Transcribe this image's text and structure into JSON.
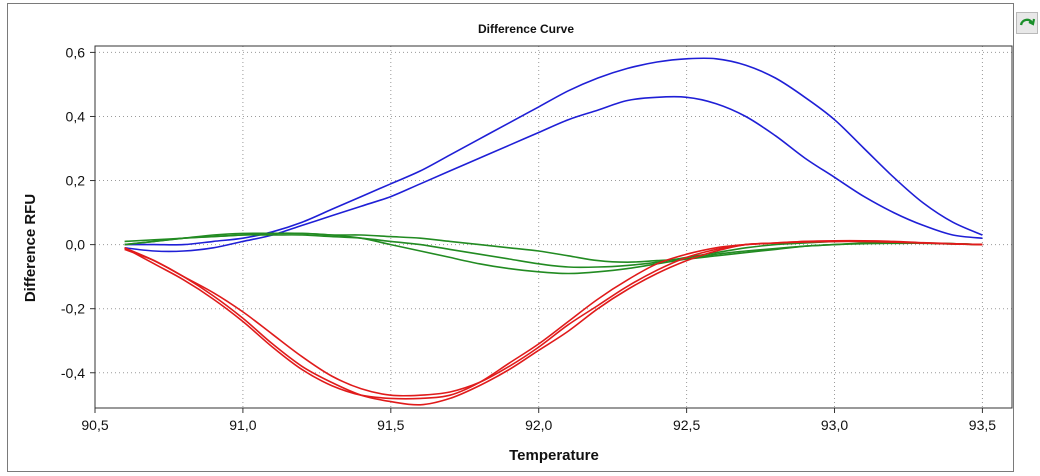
{
  "corner_icon": "refresh-arrow-icon",
  "chart_data": {
    "type": "line",
    "title": "Difference Curve",
    "xlabel": "Temperature",
    "ylabel": "Difference RFU",
    "xlim": [
      90.5,
      93.6
    ],
    "ylim": [
      -0.51,
      0.62
    ],
    "xticks": [
      90.5,
      91.0,
      91.5,
      92.0,
      92.5,
      93.0,
      93.5
    ],
    "xtick_labels": [
      "90,5",
      "91,0",
      "91,5",
      "92,0",
      "92,5",
      "93,0",
      "93,5"
    ],
    "yticks": [
      -0.4,
      -0.2,
      0.0,
      0.2,
      0.4,
      0.6
    ],
    "ytick_labels": [
      "-0,4",
      "-0,2",
      "0,0",
      "0,2",
      "0,4",
      "0,6"
    ],
    "grid": true,
    "legend": "none",
    "series": [
      {
        "color": "#1f1fd6",
        "x": [
          90.6,
          90.7,
          90.8,
          90.9,
          91.0,
          91.1,
          91.2,
          91.3,
          91.4,
          91.5,
          91.6,
          91.7,
          91.8,
          91.9,
          92.0,
          92.1,
          92.2,
          92.3,
          92.4,
          92.5,
          92.6,
          92.7,
          92.8,
          92.9,
          93.0,
          93.1,
          93.2,
          93.3,
          93.4,
          93.5
        ],
        "y": [
          0.0,
          0.0,
          0.0,
          0.01,
          0.02,
          0.04,
          0.07,
          0.11,
          0.15,
          0.19,
          0.23,
          0.28,
          0.33,
          0.38,
          0.43,
          0.48,
          0.52,
          0.55,
          0.57,
          0.58,
          0.58,
          0.56,
          0.52,
          0.46,
          0.39,
          0.3,
          0.21,
          0.13,
          0.07,
          0.03
        ]
      },
      {
        "color": "#1f1fd6",
        "x": [
          90.6,
          90.7,
          90.8,
          90.9,
          91.0,
          91.1,
          91.2,
          91.3,
          91.4,
          91.5,
          91.6,
          91.7,
          91.8,
          91.9,
          92.0,
          92.1,
          92.2,
          92.3,
          92.4,
          92.5,
          92.6,
          92.7,
          92.8,
          92.9,
          93.0,
          93.1,
          93.2,
          93.3,
          93.4,
          93.5
        ],
        "y": [
          -0.01,
          -0.02,
          -0.02,
          -0.01,
          0.01,
          0.03,
          0.06,
          0.09,
          0.12,
          0.15,
          0.19,
          0.23,
          0.27,
          0.31,
          0.35,
          0.39,
          0.42,
          0.45,
          0.46,
          0.46,
          0.44,
          0.4,
          0.34,
          0.27,
          0.21,
          0.15,
          0.1,
          0.06,
          0.03,
          0.02
        ]
      },
      {
        "color": "#228b22",
        "x": [
          90.6,
          90.7,
          90.8,
          90.9,
          91.0,
          91.1,
          91.2,
          91.3,
          91.4,
          91.5,
          91.6,
          91.7,
          91.8,
          91.9,
          92.0,
          92.1,
          92.2,
          92.3,
          92.4,
          92.5,
          92.6,
          92.7,
          92.8,
          92.9,
          93.0,
          93.1,
          93.2,
          93.3,
          93.4,
          93.5
        ],
        "y": [
          0.01,
          0.015,
          0.02,
          0.025,
          0.03,
          0.035,
          0.035,
          0.03,
          0.03,
          0.025,
          0.02,
          0.01,
          0.0,
          -0.01,
          -0.02,
          -0.035,
          -0.05,
          -0.055,
          -0.05,
          -0.045,
          -0.035,
          -0.025,
          -0.015,
          -0.005,
          0.0,
          0.005,
          0.005,
          0.005,
          0.003,
          0.0
        ]
      },
      {
        "color": "#228b22",
        "x": [
          90.6,
          90.7,
          90.8,
          90.9,
          91.0,
          91.1,
          91.2,
          91.3,
          91.4,
          91.5,
          91.6,
          91.7,
          91.8,
          91.9,
          92.0,
          92.1,
          92.2,
          92.3,
          92.4,
          92.5,
          92.6,
          92.7,
          92.8,
          92.9,
          93.0,
          93.1,
          93.2,
          93.3,
          93.4,
          93.5
        ],
        "y": [
          0.0,
          0.01,
          0.02,
          0.025,
          0.03,
          0.03,
          0.03,
          0.025,
          0.02,
          0.01,
          0.0,
          -0.015,
          -0.03,
          -0.045,
          -0.06,
          -0.07,
          -0.07,
          -0.065,
          -0.055,
          -0.04,
          -0.025,
          -0.01,
          0.0,
          0.005,
          0.01,
          0.01,
          0.008,
          0.005,
          0.003,
          0.0
        ]
      },
      {
        "color": "#228b22",
        "x": [
          90.6,
          90.7,
          90.8,
          90.9,
          91.0,
          91.1,
          91.2,
          91.3,
          91.4,
          91.5,
          91.6,
          91.7,
          91.8,
          91.9,
          92.0,
          92.1,
          92.2,
          92.3,
          92.4,
          92.5,
          92.6,
          92.7,
          92.8,
          92.9,
          93.0,
          93.1,
          93.2,
          93.3,
          93.4,
          93.5
        ],
        "y": [
          0.0,
          0.01,
          0.02,
          0.03,
          0.035,
          0.035,
          0.035,
          0.03,
          0.02,
          0.0,
          -0.02,
          -0.04,
          -0.06,
          -0.075,
          -0.085,
          -0.09,
          -0.085,
          -0.075,
          -0.06,
          -0.045,
          -0.03,
          -0.02,
          -0.012,
          -0.005,
          0.0,
          0.003,
          0.004,
          0.004,
          0.002,
          0.0
        ]
      },
      {
        "color": "#e01b1b",
        "x": [
          90.6,
          90.7,
          90.8,
          90.9,
          91.0,
          91.1,
          91.2,
          91.3,
          91.4,
          91.5,
          91.6,
          91.7,
          91.8,
          91.9,
          92.0,
          92.1,
          92.2,
          92.3,
          92.4,
          92.5,
          92.6,
          92.7,
          92.8,
          92.9,
          93.0,
          93.1,
          93.2,
          93.3,
          93.4,
          93.5
        ],
        "y": [
          -0.01,
          -0.05,
          -0.1,
          -0.16,
          -0.23,
          -0.31,
          -0.38,
          -0.43,
          -0.47,
          -0.49,
          -0.5,
          -0.48,
          -0.44,
          -0.39,
          -0.33,
          -0.27,
          -0.2,
          -0.14,
          -0.09,
          -0.05,
          -0.02,
          0.0,
          0.005,
          0.01,
          0.01,
          0.01,
          0.008,
          0.005,
          0.002,
          0.0
        ]
      },
      {
        "color": "#e01b1b",
        "x": [
          90.6,
          90.7,
          90.8,
          90.9,
          91.0,
          91.1,
          91.2,
          91.3,
          91.4,
          91.5,
          91.6,
          91.7,
          91.8,
          91.9,
          92.0,
          92.1,
          92.2,
          92.3,
          92.4,
          92.5,
          92.6,
          92.7,
          92.8,
          92.9,
          93.0,
          93.1,
          93.2,
          93.3,
          93.4,
          93.5
        ],
        "y": [
          -0.015,
          -0.05,
          -0.1,
          -0.15,
          -0.21,
          -0.28,
          -0.35,
          -0.41,
          -0.45,
          -0.47,
          -0.47,
          -0.46,
          -0.43,
          -0.38,
          -0.32,
          -0.25,
          -0.19,
          -0.13,
          -0.08,
          -0.04,
          -0.015,
          0.0,
          0.005,
          0.01,
          0.012,
          0.012,
          0.01,
          0.006,
          0.003,
          0.0
        ]
      },
      {
        "color": "#e01b1b",
        "x": [
          90.6,
          90.7,
          90.8,
          90.9,
          91.0,
          91.1,
          91.2,
          91.3,
          91.4,
          91.5,
          91.6,
          91.7,
          91.8,
          91.9,
          92.0,
          92.1,
          92.2,
          92.3,
          92.4,
          92.5,
          92.6,
          92.7,
          92.8,
          92.9,
          93.0,
          93.1,
          93.2,
          93.3,
          93.4,
          93.5
        ],
        "y": [
          -0.01,
          -0.06,
          -0.11,
          -0.17,
          -0.24,
          -0.32,
          -0.39,
          -0.44,
          -0.47,
          -0.48,
          -0.48,
          -0.47,
          -0.43,
          -0.37,
          -0.31,
          -0.24,
          -0.17,
          -0.11,
          -0.06,
          -0.03,
          -0.01,
          0.0,
          0.005,
          0.008,
          0.01,
          0.01,
          0.008,
          0.005,
          0.002,
          0.0
        ]
      }
    ]
  }
}
